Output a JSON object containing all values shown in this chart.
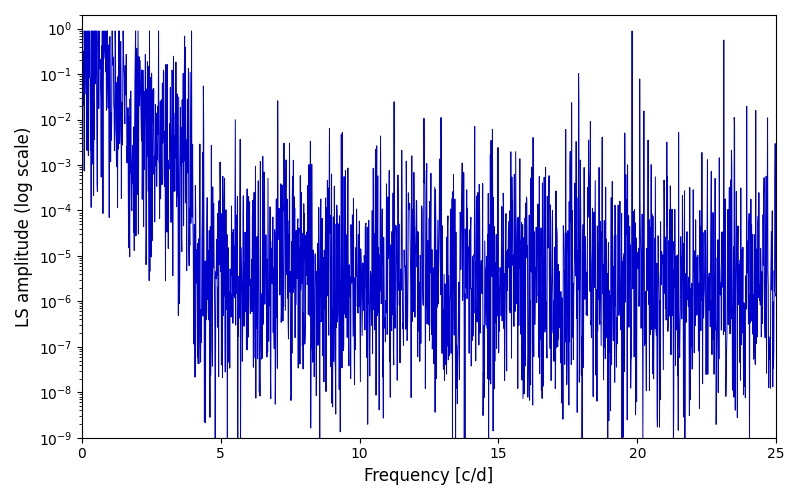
{
  "xlabel": "Frequency [c/d]",
  "ylabel": "LS amplitude (log scale)",
  "xlim": [
    0,
    25
  ],
  "ylim": [
    1e-09,
    2
  ],
  "line_color": "#0000cc",
  "line_width": 0.7,
  "figsize": [
    8.0,
    5.0
  ],
  "dpi": 100,
  "seed": 7,
  "n_points": 2000,
  "freq_max": 25.0
}
